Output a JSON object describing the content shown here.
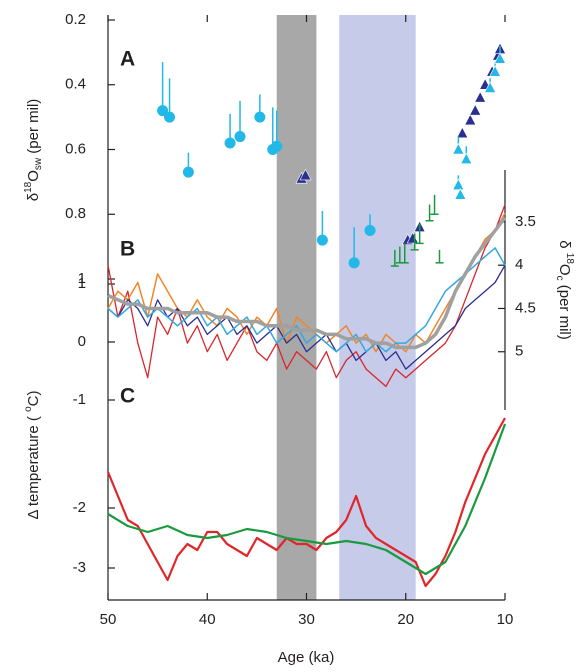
{
  "chart_data": [
    {
      "type": "scatter",
      "label": "A",
      "ylabel": [
        "δ",
        "18",
        "O",
        "sw",
        "  (per mil)"
      ],
      "ylim": [
        0.2,
        1.0
      ],
      "yticks": [
        0.2,
        0.4,
        0.6,
        0.8,
        1
      ],
      "shading": [
        {
          "range": [
            33,
            29
          ],
          "color": "#a8a8a8"
        },
        {
          "range": [
            26.7,
            19
          ],
          "color": "#c5cbe8"
        }
      ],
      "series": [
        {
          "marker": "circle",
          "color": "#22b8e8",
          "x": [
            44.5,
            43.8,
            41.9,
            37.7,
            36.7,
            34.7,
            33.4,
            33.0,
            28.4,
            25.2,
            23.6
          ],
          "values": [
            0.48,
            0.5,
            0.67,
            0.58,
            0.56,
            0.5,
            0.6,
            0.59,
            0.88,
            0.95,
            0.85
          ],
          "errors": [
            0.15,
            0.12,
            0.06,
            0.09,
            0.11,
            0.07,
            0.13,
            0.11,
            0.09,
            0.11,
            0.05
          ]
        },
        {
          "marker": "triangle",
          "color": "#2b2f8f",
          "x": [
            30.5,
            30.1,
            19.8,
            19.3,
            18.6,
            14.3,
            13.5,
            13.0,
            12.5,
            12.0,
            11.3,
            10.7,
            10.5
          ],
          "values": [
            0.69,
            0.68,
            0.88,
            0.875,
            0.84,
            0.55,
            0.51,
            0.48,
            0.44,
            0.4,
            0.36,
            0.31,
            0.29
          ]
        },
        {
          "marker": "triangle",
          "color": "#22b8e8",
          "x": [
            14.7,
            14.7,
            14.5,
            13.9,
            11.5,
            11.0,
            10.5
          ],
          "values": [
            0.6,
            0.71,
            0.74,
            0.63,
            0.41,
            0.36,
            0.32
          ],
          "errors": [
            0.04,
            0.03,
            0.03,
            0.04,
            0.03,
            0.03,
            0.04
          ]
        },
        {
          "marker": "tick",
          "color": "#1a9a3e",
          "x": [
            21.1,
            20.6,
            20.1,
            19.1,
            18.6,
            17.6,
            17.1,
            16.6
          ],
          "values": [
            0.96,
            0.95,
            0.95,
            0.91,
            0.89,
            0.82,
            0.8,
            0.95
          ],
          "errors": [
            0.05,
            0.05,
            0.06,
            0.05,
            0.06,
            0.05,
            0.06,
            0.04
          ]
        }
      ]
    },
    {
      "type": "line",
      "label": "B",
      "ylim": [
        1,
        -1
      ],
      "yticks": [
        1,
        0,
        -1
      ],
      "y2label": [
        "δ ",
        "18",
        "O",
        "c",
        " (per mil)"
      ],
      "y2lim": [
        2.9,
        5.65
      ],
      "y2ticks": [
        3.5,
        4,
        4.5,
        5
      ],
      "x": [
        50,
        49,
        48,
        47,
        46,
        45,
        44,
        43,
        42,
        41,
        40,
        39,
        38,
        37,
        36,
        35,
        34,
        33,
        32,
        31,
        30,
        29,
        28,
        27,
        26,
        25,
        24,
        23,
        22,
        21,
        20,
        19,
        18,
        17,
        16,
        15,
        14,
        13,
        12,
        11,
        10
      ],
      "series": [
        {
          "color": "#d8262b",
          "axis": "y2",
          "width": 1.3,
          "values": [
            4.0,
            4.6,
            4.3,
            4.9,
            5.3,
            4.6,
            4.8,
            4.5,
            4.9,
            4.7,
            5.0,
            4.8,
            5.1,
            4.9,
            4.7,
            5.0,
            5.1,
            4.9,
            5.2,
            5.0,
            5.1,
            5.2,
            5.0,
            5.3,
            5.1,
            5.0,
            5.2,
            5.3,
            5.4,
            5.2,
            5.3,
            5.2,
            5.1,
            5.0,
            4.9,
            4.7,
            4.4,
            4.1,
            3.8,
            3.6,
            3.3
          ]
        },
        {
          "color": "#f0862a",
          "axis": "y2",
          "width": 1.5,
          "values": [
            4.5,
            4.3,
            4.4,
            4.2,
            4.6,
            4.1,
            4.3,
            4.5,
            4.6,
            4.4,
            4.6,
            4.7,
            4.5,
            4.6,
            4.8,
            4.6,
            4.7,
            4.5,
            4.9,
            4.6,
            4.7,
            4.8,
            4.9,
            4.8,
            4.7,
            4.9,
            4.8,
            5.0,
            4.8,
            4.9,
            5.0,
            4.8,
            4.9,
            4.7,
            4.5,
            4.3,
            4.1,
            3.9,
            3.7,
            3.6,
            3.4
          ]
        },
        {
          "color": "#2b2f8f",
          "axis": "y2",
          "width": 1.3,
          "values": [
            4.5,
            4.6,
            4.4,
            4.5,
            4.7,
            4.4,
            4.6,
            4.5,
            4.7,
            4.6,
            4.8,
            4.7,
            4.6,
            4.8,
            4.7,
            4.9,
            4.8,
            4.7,
            4.9,
            4.8,
            5.0,
            4.9,
            4.8,
            5.0,
            4.9,
            5.1,
            5.0,
            4.9,
            5.1,
            5.0,
            5.2,
            5.1,
            5.0,
            4.9,
            4.8,
            4.7,
            4.5,
            4.4,
            4.3,
            4.2,
            4.0
          ]
        },
        {
          "color": "#35a8e0",
          "axis": "y2",
          "width": 1.5,
          "values": [
            4.5,
            4.6,
            4.5,
            4.4,
            4.6,
            4.5,
            4.6,
            4.7,
            4.6,
            4.5,
            4.7,
            4.6,
            4.8,
            4.7,
            4.6,
            4.8,
            4.7,
            4.9,
            4.8,
            4.7,
            4.9,
            4.8,
            4.9,
            5.0,
            4.9,
            4.8,
            5.0,
            4.9,
            5.0,
            4.9,
            4.9,
            4.8,
            4.7,
            4.5,
            4.3,
            4.2,
            4.1,
            4.0,
            3.9,
            3.8,
            4.0
          ]
        },
        {
          "color": "#a0a0a0",
          "axis": "y2",
          "width": 3.5,
          "values": [
            4.35,
            4.4,
            4.45,
            4.45,
            4.5,
            4.5,
            4.5,
            4.55,
            4.55,
            4.55,
            4.55,
            4.6,
            4.6,
            4.65,
            4.65,
            4.65,
            4.7,
            4.7,
            4.7,
            4.75,
            4.75,
            4.75,
            4.8,
            4.8,
            4.85,
            4.85,
            4.85,
            4.9,
            4.9,
            4.95,
            4.95,
            4.95,
            4.9,
            4.8,
            4.6,
            4.3,
            4.1,
            3.9,
            3.75,
            3.6,
            3.45
          ]
        }
      ]
    },
    {
      "type": "line",
      "label": "C",
      "ylabel": [
        "Δ temperature ( ",
        "o",
        "C)"
      ],
      "ylim": [
        -0.4,
        -3.5
      ],
      "yticks": [
        -2,
        -3
      ],
      "xlabel": "Age (ka)",
      "xlim": [
        50,
        10
      ],
      "xticks": [
        50,
        40,
        30,
        20,
        10
      ],
      "series": [
        {
          "color": "#e0262a",
          "width": 2.2,
          "x": [
            50,
            49,
            48,
            47,
            46,
            45,
            44,
            43,
            42,
            41,
            40,
            39,
            38,
            37,
            36,
            35,
            34,
            33,
            32,
            31,
            30,
            29,
            28,
            27,
            26,
            25,
            24,
            23,
            22,
            21,
            20,
            19,
            18,
            17,
            16,
            15,
            14,
            13,
            12,
            11,
            10
          ],
          "values": [
            -1.4,
            -1.8,
            -2.2,
            -2.3,
            -2.6,
            -2.9,
            -3.2,
            -2.8,
            -2.6,
            -2.7,
            -2.4,
            -2.4,
            -2.6,
            -2.7,
            -2.8,
            -2.5,
            -2.6,
            -2.7,
            -2.5,
            -2.6,
            -2.6,
            -2.7,
            -2.5,
            -2.4,
            -2.2,
            -1.8,
            -2.3,
            -2.5,
            -2.6,
            -2.7,
            -2.8,
            -2.9,
            -3.3,
            -3.1,
            -2.8,
            -2.4,
            -1.9,
            -1.5,
            -1.1,
            -0.8,
            -0.5
          ]
        },
        {
          "color": "#1a9a3e",
          "width": 2.2,
          "x": [
            50,
            48,
            46,
            44,
            42,
            40,
            38,
            36,
            34,
            32,
            30,
            28,
            26,
            24,
            22,
            20,
            18,
            16,
            14,
            12,
            10
          ],
          "values": [
            -2.1,
            -2.3,
            -2.4,
            -2.3,
            -2.45,
            -2.5,
            -2.45,
            -2.35,
            -2.4,
            -2.5,
            -2.55,
            -2.6,
            -2.55,
            -2.6,
            -2.7,
            -2.9,
            -3.1,
            -2.9,
            -2.3,
            -1.5,
            -0.6
          ]
        }
      ]
    }
  ]
}
